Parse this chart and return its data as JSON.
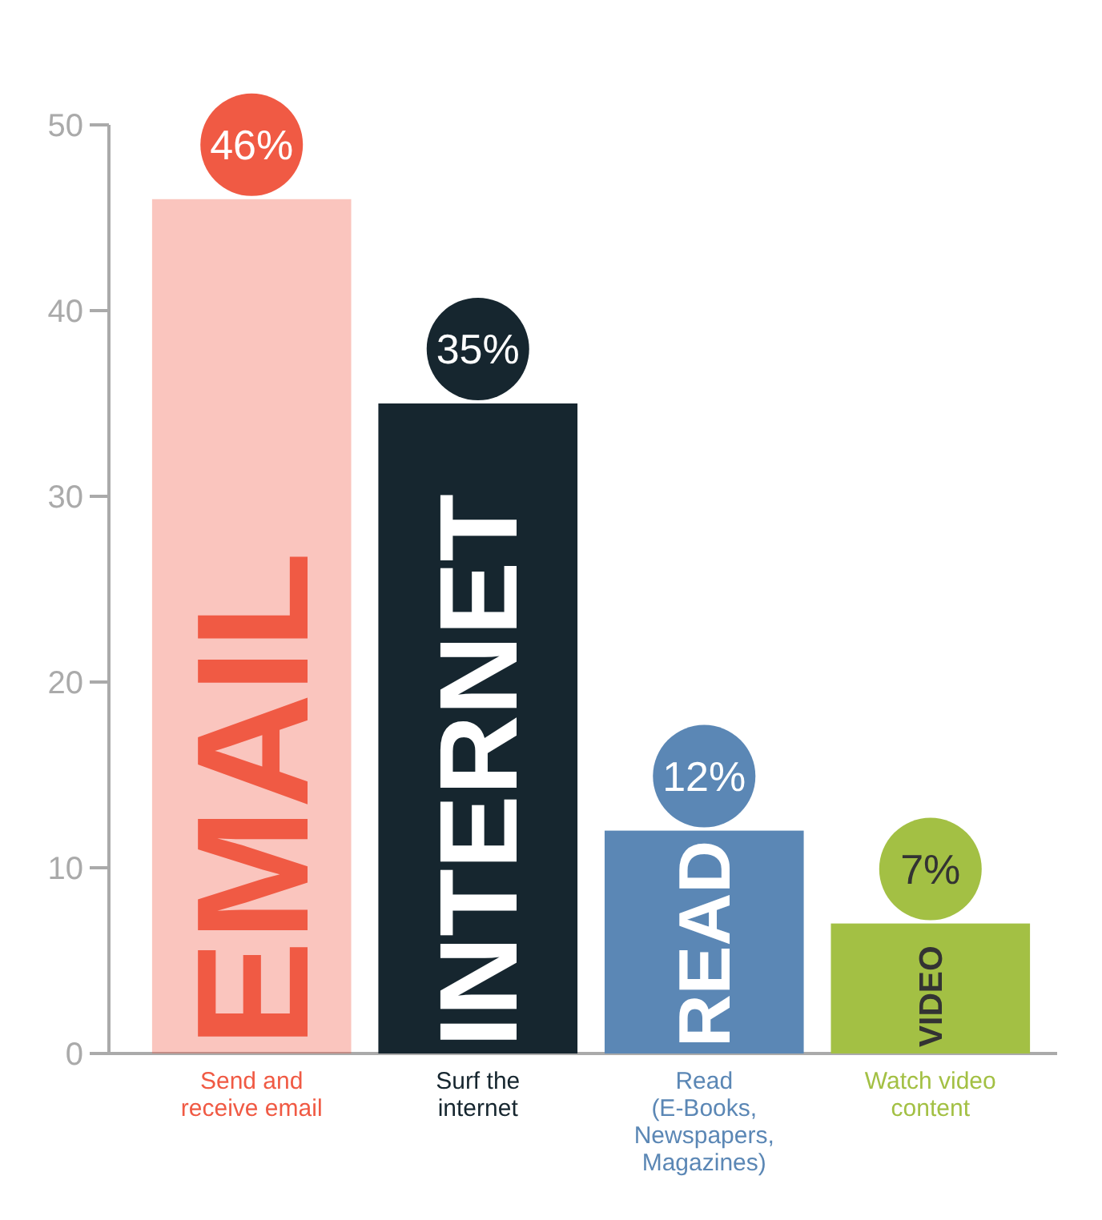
{
  "chart_data": {
    "type": "bar",
    "categories": [
      "Send and receive email",
      "Surf the internet",
      "Read (E-Books, Newspapers, Magazines)",
      "Watch video content"
    ],
    "values": [
      46,
      35,
      12,
      7
    ],
    "value_labels": [
      "46%",
      "35%",
      "12%",
      "7%"
    ],
    "colors": [
      "#f05a44",
      "#16262f",
      "#5b87b5",
      "#a3c044"
    ],
    "annotations": [
      "EMAIL",
      "INTERNET",
      "READ",
      "VIDEO"
    ],
    "ylim": [
      0,
      50
    ],
    "yticks": [
      0,
      10,
      20,
      30,
      40,
      50
    ],
    "grid": false
  }
}
